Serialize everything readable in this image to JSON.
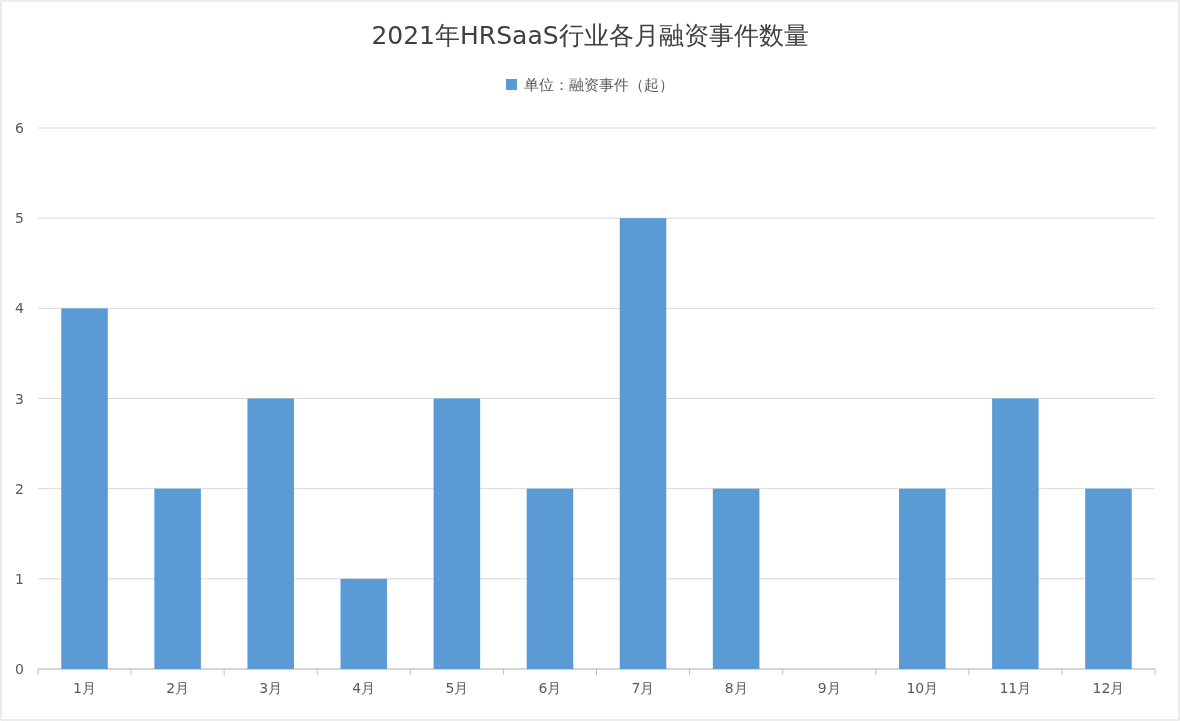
{
  "chart_data": {
    "type": "bar",
    "title": "2021年HRSaaS行业各月融资事件数量",
    "categories": [
      "1月",
      "2月",
      "3月",
      "4月",
      "5月",
      "6月",
      "7月",
      "8月",
      "9月",
      "10月",
      "11月",
      "12月"
    ],
    "series": [
      {
        "name": "单位：融资事件（起）",
        "color": "#5b9bd5",
        "values": [
          4,
          2,
          3,
          1,
          3,
          2,
          5,
          2,
          0,
          2,
          3,
          2
        ]
      }
    ],
    "ylim": [
      0,
      6
    ],
    "yticks": [
      0,
      1,
      2,
      3,
      4,
      5,
      6
    ],
    "grid": "y",
    "legend": "top"
  }
}
